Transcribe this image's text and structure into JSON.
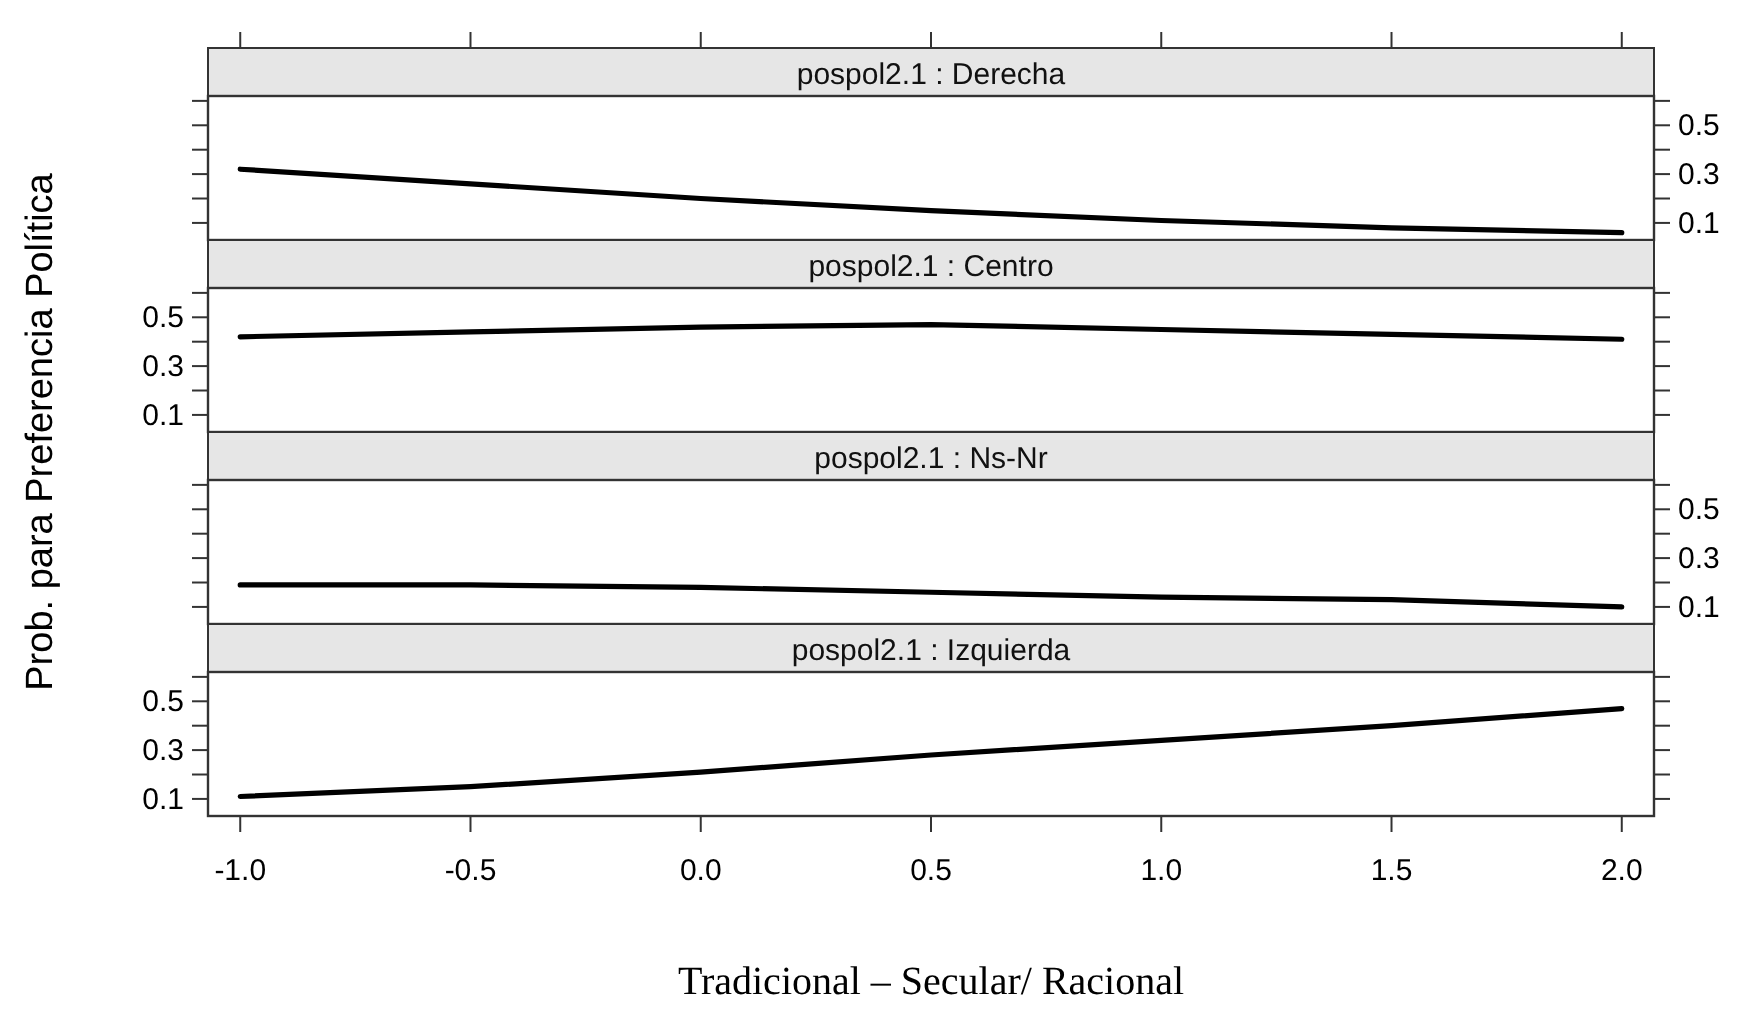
{
  "chart_data": [
    {
      "type": "line",
      "title": "pospol2.1 : Derecha",
      "ylabel": "Prob. para Preferencia Política",
      "x": [
        -1,
        -0.5,
        0,
        0.5,
        1,
        1.5,
        2
      ],
      "values": [
        0.32,
        0.26,
        0.2,
        0.15,
        0.11,
        0.08,
        0.06
      ],
      "color": "#000000",
      "xlim": [
        -1.07,
        2.07
      ],
      "ylim": [
        0.03,
        0.62
      ],
      "xticks": [
        -1,
        -0.5,
        0,
        0.5,
        1,
        1.5,
        2
      ],
      "yticks": [
        0.1,
        {
          "value": 0.2,
          "label": null
        },
        0.3,
        {
          "value": 0.4,
          "label": null
        },
        0.5,
        {
          "value": 0.6,
          "label": null
        }
      ],
      "tick_labels": "y"
    },
    {
      "type": "line",
      "title": "pospol2.1 : Centro",
      "x": [
        -1,
        -0.5,
        0,
        0.5,
        1,
        1.5,
        2
      ],
      "values": [
        0.42,
        0.44,
        0.46,
        0.47,
        0.45,
        0.43,
        0.41
      ],
      "color": "#000000",
      "xlim": [
        -1.07,
        2.07
      ],
      "ylim": [
        0.03,
        0.62
      ],
      "xticks": [
        -1,
        -0.5,
        0,
        0.5,
        1,
        1.5,
        2
      ],
      "yticks": [
        0.1,
        {
          "value": 0.2,
          "label": null
        },
        0.3,
        {
          "value": 0.4,
          "label": null
        },
        0.5,
        {
          "value": 0.6,
          "label": null
        }
      ],
      "tick_labels": "y"
    },
    {
      "type": "line",
      "title": "pospol2.1 : Ns-Nr",
      "x": [
        -1,
        -0.5,
        0,
        0.5,
        1,
        1.5,
        2
      ],
      "values": [
        0.19,
        0.19,
        0.18,
        0.16,
        0.14,
        0.13,
        0.1
      ],
      "color": "#000000",
      "xlim": [
        -1.07,
        2.07
      ],
      "ylim": [
        0.03,
        0.62
      ],
      "xticks": [
        -1,
        -0.5,
        0,
        0.5,
        1,
        1.5,
        2
      ],
      "yticks": [
        0.1,
        {
          "value": 0.2,
          "label": null
        },
        0.3,
        {
          "value": 0.4,
          "label": null
        },
        0.5,
        {
          "value": 0.6,
          "label": null
        }
      ],
      "tick_labels": "y"
    },
    {
      "type": "line",
      "title": "pospol2.1 : Izquierda",
      "xlabel": "Tradicional – Secular/ Racional",
      "x": [
        -1,
        -0.5,
        0,
        0.5,
        1,
        1.5,
        2
      ],
      "values": [
        0.11,
        0.15,
        0.21,
        0.28,
        0.34,
        0.4,
        0.47
      ],
      "color": "#000000",
      "xlim": [
        -1.07,
        2.07
      ],
      "ylim": [
        0.03,
        0.62
      ],
      "xticks": [
        {
          "value": -1,
          "label": "-1.0"
        },
        {
          "value": -0.5,
          "label": "-0.5"
        },
        {
          "value": 0,
          "label": "0.0"
        },
        {
          "value": 0.5,
          "label": "0.5"
        },
        {
          "value": 1,
          "label": "1.0"
        },
        {
          "value": 1.5,
          "label": "1.5"
        },
        {
          "value": 2,
          "label": "2.0"
        }
      ],
      "yticks": [
        0.1,
        {
          "value": 0.2,
          "label": null
        },
        0.3,
        {
          "value": 0.4,
          "label": null
        },
        0.5,
        {
          "value": 0.6,
          "label": null
        }
      ]
    }
  ]
}
